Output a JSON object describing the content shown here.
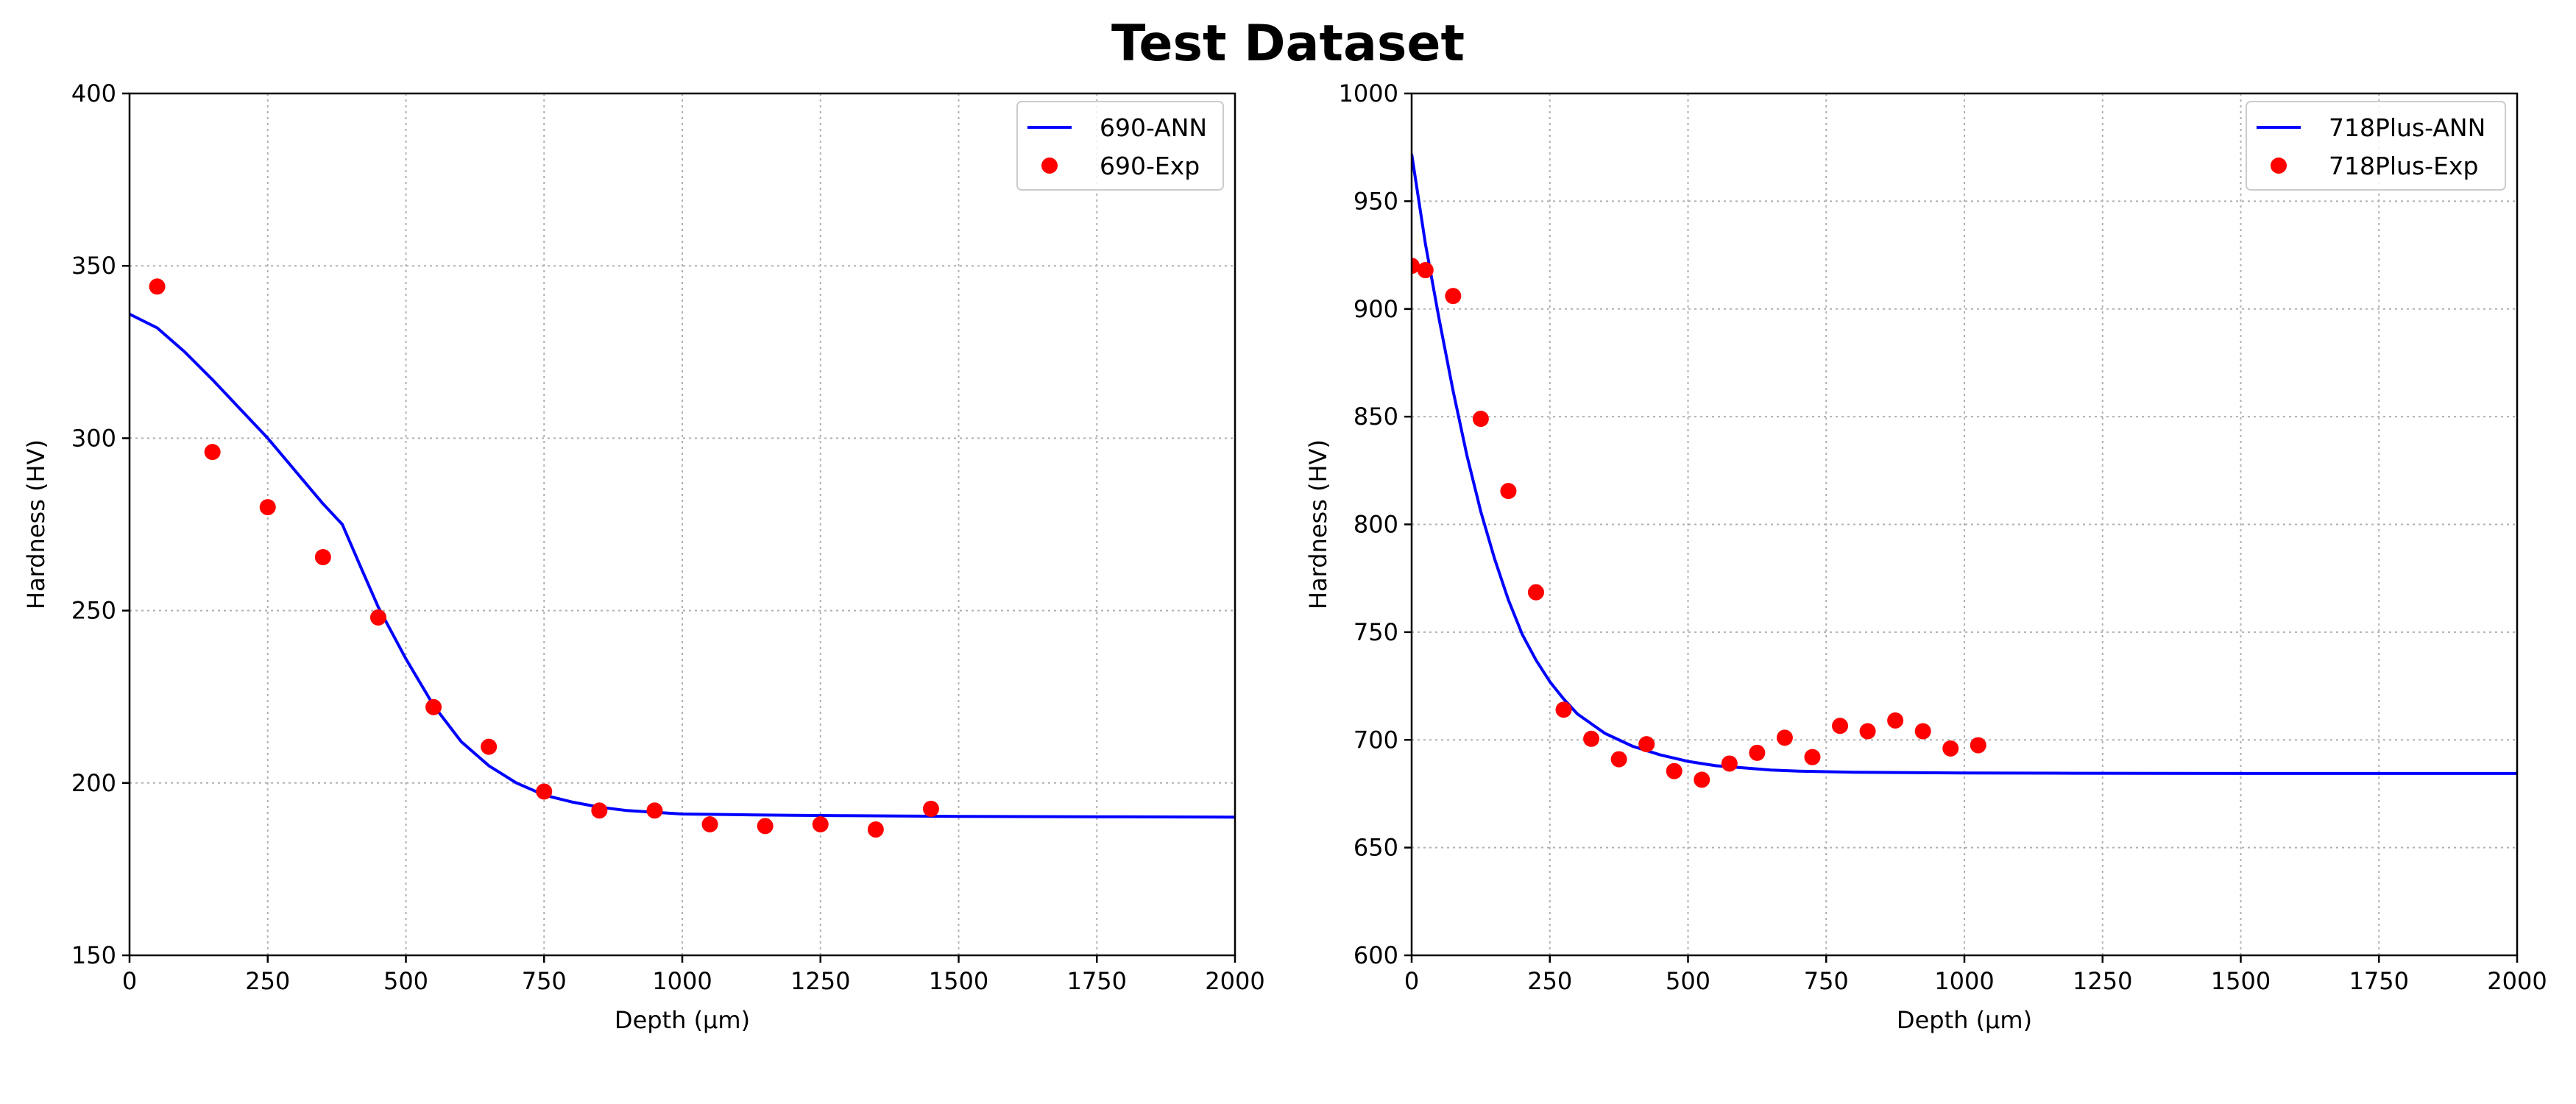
{
  "figure": {
    "title": "Test Dataset"
  },
  "colors": {
    "line": "#0000ff",
    "marker": "#ff0000",
    "grid": "#b0b0b0",
    "axes": "#000000"
  },
  "chart_data": [
    {
      "type": "line",
      "xlabel": "Depth (μm)",
      "ylabel": "Hardness (HV)",
      "xlim": [
        0,
        2000
      ],
      "ylim": [
        150,
        400
      ],
      "xticks": [
        0,
        250,
        500,
        750,
        1000,
        1250,
        1500,
        1750,
        2000
      ],
      "yticks": [
        150,
        200,
        250,
        300,
        350,
        400
      ],
      "grid": true,
      "legend_position": "top-right",
      "series": [
        {
          "name": "690-ANN",
          "kind": "line",
          "color": "#0000ff",
          "x": [
            0,
            50,
            100,
            150,
            200,
            250,
            300,
            350,
            385,
            420,
            450,
            500,
            550,
            600,
            650,
            700,
            750,
            800,
            850,
            900,
            950,
            1000,
            1100,
            1200,
            1300,
            1400,
            1500,
            1750,
            2000
          ],
          "y": [
            336,
            332,
            325,
            317,
            308.5,
            300,
            290.5,
            281,
            275,
            262,
            251,
            236,
            222.5,
            212,
            205,
            200,
            196.5,
            194.5,
            193,
            192,
            191.5,
            191,
            190.8,
            190.6,
            190.5,
            190.4,
            190.3,
            190.2,
            190.1
          ]
        },
        {
          "name": "690-Exp",
          "kind": "scatter",
          "color": "#ff0000",
          "x": [
            50,
            150,
            250,
            350,
            450,
            550,
            650,
            750,
            850,
            950,
            1050,
            1150,
            1250,
            1350,
            1450
          ],
          "y": [
            344,
            296,
            280,
            265.5,
            248,
            222,
            210.5,
            197.5,
            192,
            192,
            188,
            187.5,
            188,
            186.5,
            192.5
          ]
        }
      ]
    },
    {
      "type": "line",
      "xlabel": "Depth (μm)",
      "ylabel": "Hardness (HV)",
      "xlim": [
        0,
        2000
      ],
      "ylim": [
        600,
        1000
      ],
      "xticks": [
        0,
        250,
        500,
        750,
        1000,
        1250,
        1500,
        1750,
        2000
      ],
      "yticks": [
        600,
        650,
        700,
        750,
        800,
        850,
        900,
        950,
        1000
      ],
      "grid": true,
      "legend_position": "top-right",
      "series": [
        {
          "name": "718Plus-ANN",
          "kind": "line",
          "color": "#0000ff",
          "x": [
            0,
            25,
            50,
            75,
            100,
            125,
            150,
            175,
            200,
            225,
            250,
            275,
            300,
            350,
            400,
            450,
            500,
            550,
            600,
            650,
            700,
            800,
            900,
            1000,
            1200,
            1500,
            1750,
            2000
          ],
          "y": [
            972,
            930,
            895,
            862,
            832,
            806,
            784,
            765,
            749,
            737,
            727,
            719,
            712,
            703,
            697,
            693,
            690,
            688,
            687,
            686,
            685.5,
            685,
            684.8,
            684.6,
            684.5,
            684.4,
            684.4,
            684.4
          ]
        },
        {
          "name": "718Plus-Exp",
          "kind": "scatter",
          "color": "#ff0000",
          "x": [
            0,
            25,
            75,
            125,
            175,
            225,
            275,
            325,
            375,
            425,
            475,
            525,
            575,
            625,
            675,
            725,
            775,
            825,
            875,
            925,
            975,
            1025
          ],
          "y": [
            920,
            918,
            906,
            849,
            815.5,
            768.5,
            714,
            700.5,
            691,
            698,
            685.5,
            681.5,
            689,
            694,
            701,
            692,
            706.5,
            704,
            709,
            704,
            696,
            697.5
          ]
        }
      ]
    }
  ]
}
